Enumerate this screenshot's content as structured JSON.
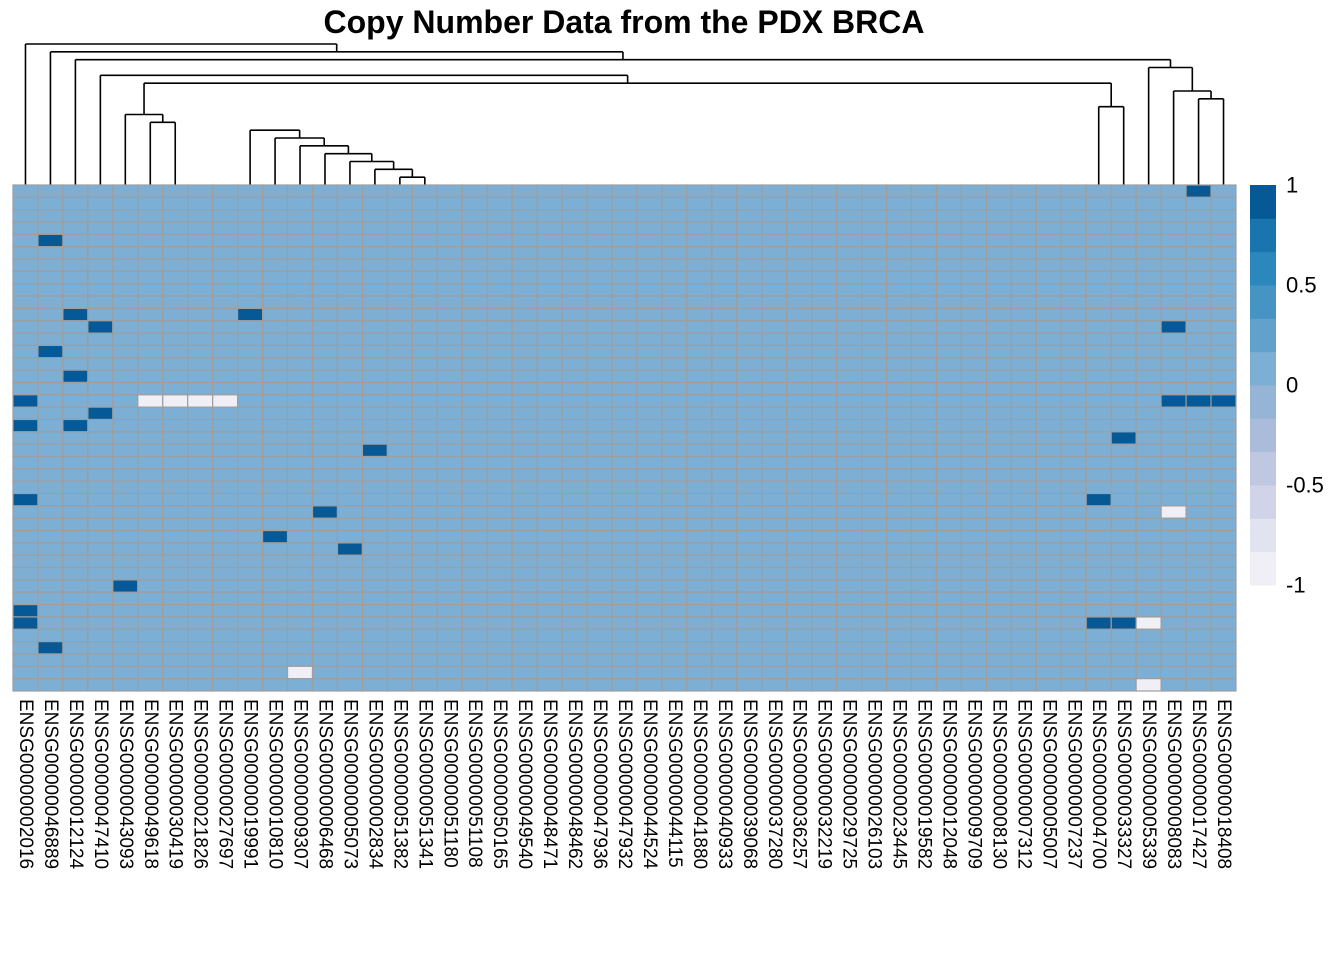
{
  "chart_data": {
    "type": "heatmap",
    "title": "Copy Number Data from the PDX BRCA",
    "columns": [
      "ENSG00000002016",
      "ENSG00000046889",
      "ENSG00000012124",
      "ENSG00000047410",
      "ENSG00000043093",
      "ENSG00000049618",
      "ENSG00000030419",
      "ENSG00000021826",
      "ENSG00000027697",
      "ENSG00000019991",
      "ENSG00000010810",
      "ENSG00000009307",
      "ENSG00000006468",
      "ENSG00000005073",
      "ENSG00000002834",
      "ENSG00000051382",
      "ENSG00000051341",
      "ENSG00000051180",
      "ENSG00000051108",
      "ENSG00000050165",
      "ENSG00000049540",
      "ENSG00000048471",
      "ENSG00000048462",
      "ENSG00000047936",
      "ENSG00000047932",
      "ENSG00000044524",
      "ENSG00000044115",
      "ENSG00000041880",
      "ENSG00000040933",
      "ENSG00000039068",
      "ENSG00000037280",
      "ENSG00000036257",
      "ENSG00000032219",
      "ENSG00000029725",
      "ENSG00000026103",
      "ENSG00000023445",
      "ENSG00000019582",
      "ENSG00000012048",
      "ENSG00000009709",
      "ENSG00000008130",
      "ENSG00000007312",
      "ENSG00000005007",
      "ENSG00000007237",
      "ENSG00000004700",
      "ENSG00000033327",
      "ENSG00000005339",
      "ENSG00000008083",
      "ENSG00000017427",
      "ENSG00000018408"
    ],
    "n_rows": 41,
    "default_value": 0,
    "nonzero_cells": [
      {
        "row": 0,
        "col": 47,
        "value": 1
      },
      {
        "row": 4,
        "col": 1,
        "value": 1
      },
      {
        "row": 10,
        "col": 2,
        "value": 1
      },
      {
        "row": 10,
        "col": 9,
        "value": 1
      },
      {
        "row": 11,
        "col": 3,
        "value": 1
      },
      {
        "row": 11,
        "col": 46,
        "value": 1
      },
      {
        "row": 13,
        "col": 1,
        "value": 1
      },
      {
        "row": 15,
        "col": 2,
        "value": 1
      },
      {
        "row": 17,
        "col": 0,
        "value": 1
      },
      {
        "row": 17,
        "col": 5,
        "value": -1
      },
      {
        "row": 17,
        "col": 6,
        "value": -1
      },
      {
        "row": 17,
        "col": 7,
        "value": -1
      },
      {
        "row": 17,
        "col": 8,
        "value": -1
      },
      {
        "row": 17,
        "col": 46,
        "value": 1
      },
      {
        "row": 17,
        "col": 47,
        "value": 1
      },
      {
        "row": 17,
        "col": 48,
        "value": 1
      },
      {
        "row": 18,
        "col": 3,
        "value": 1
      },
      {
        "row": 19,
        "col": 0,
        "value": 1
      },
      {
        "row": 19,
        "col": 2,
        "value": 1
      },
      {
        "row": 20,
        "col": 44,
        "value": 1
      },
      {
        "row": 21,
        "col": 14,
        "value": 1
      },
      {
        "row": 25,
        "col": 0,
        "value": 1
      },
      {
        "row": 25,
        "col": 43,
        "value": 1
      },
      {
        "row": 26,
        "col": 12,
        "value": 1
      },
      {
        "row": 26,
        "col": 46,
        "value": -1
      },
      {
        "row": 28,
        "col": 10,
        "value": 1
      },
      {
        "row": 29,
        "col": 13,
        "value": 1
      },
      {
        "row": 32,
        "col": 4,
        "value": 1
      },
      {
        "row": 34,
        "col": 0,
        "value": 1
      },
      {
        "row": 35,
        "col": 0,
        "value": 1
      },
      {
        "row": 35,
        "col": 43,
        "value": 1
      },
      {
        "row": 35,
        "col": 44,
        "value": 1
      },
      {
        "row": 35,
        "col": 45,
        "value": -1
      },
      {
        "row": 37,
        "col": 1,
        "value": 1
      },
      {
        "row": 39,
        "col": 11,
        "value": -1
      },
      {
        "row": 40,
        "col": 45,
        "value": -1
      }
    ],
    "color_scale": {
      "min": -1,
      "max": 1,
      "colors": [
        "#f0eff6",
        "#e2e3f0",
        "#d1d3e8",
        "#c0c8e1",
        "#abbcdb",
        "#96b5d6",
        "#7daed3",
        "#62a1cc",
        "#4694c4",
        "#2c87bd",
        "#1a74ad",
        "#055996"
      ]
    },
    "legend": {
      "ticks": [
        1,
        0.5,
        0,
        -0.5,
        -1
      ],
      "tick_labels": [
        "1",
        "0.5",
        "0",
        "-0.5",
        "-1"
      ],
      "placement": "right"
    },
    "column_dendrogram": {
      "shown": true,
      "merges": [
        [
          15,
          16
        ],
        [
          14,
          15
        ],
        [
          13,
          14
        ],
        [
          12,
          13
        ],
        [
          11,
          12
        ],
        [
          10,
          11
        ],
        [
          9,
          10
        ],
        [
          5,
          6
        ],
        [
          4,
          5
        ],
        [
          43,
          44
        ],
        [
          47,
          48
        ],
        [
          46,
          47
        ],
        [
          4,
          43
        ],
        [
          3,
          4
        ],
        [
          45,
          46
        ],
        [
          2,
          45
        ],
        [
          1,
          2
        ],
        [
          0,
          1
        ]
      ]
    },
    "grid": true
  }
}
